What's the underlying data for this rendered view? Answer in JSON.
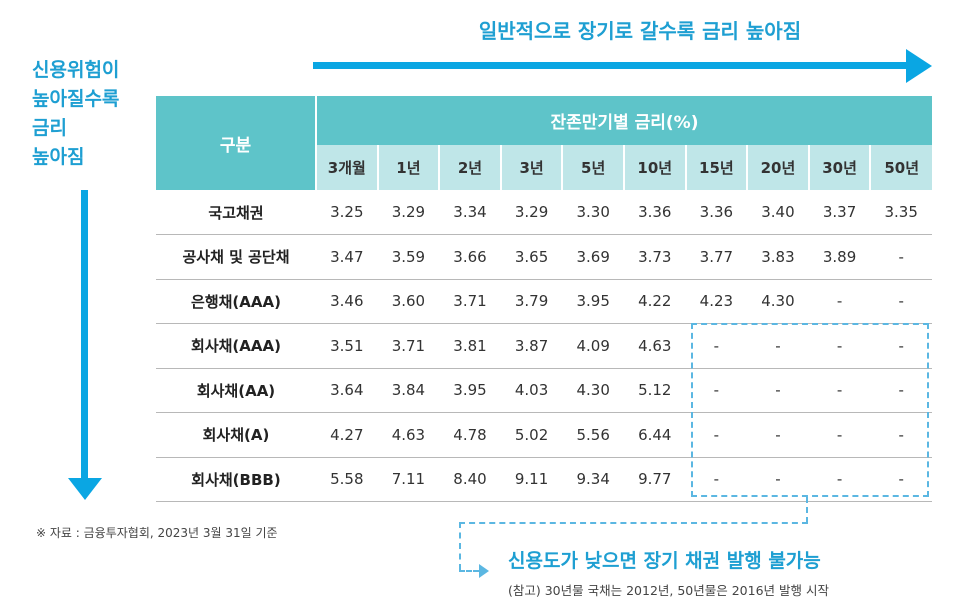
{
  "header_caption": "일반적으로 장기로 갈수록 금리 높아짐",
  "left_caption": [
    "신용위험이",
    "높아질수록",
    "금리",
    "높아짐"
  ],
  "table": {
    "corner_label": "구분",
    "group_label": "잔존만기별 금리(%)",
    "tenors": [
      "3개월",
      "1년",
      "2년",
      "3년",
      "5년",
      "10년",
      "15년",
      "20년",
      "30년",
      "50년"
    ],
    "rows": [
      {
        "label": "국고채권",
        "values": [
          "3.25",
          "3.29",
          "3.34",
          "3.29",
          "3.30",
          "3.36",
          "3.36",
          "3.40",
          "3.37",
          "3.35"
        ]
      },
      {
        "label": "공사채 및 공단채",
        "values": [
          "3.47",
          "3.59",
          "3.66",
          "3.65",
          "3.69",
          "3.73",
          "3.77",
          "3.83",
          "3.89",
          "-"
        ]
      },
      {
        "label": "은행채(AAA)",
        "values": [
          "3.46",
          "3.60",
          "3.71",
          "3.79",
          "3.95",
          "4.22",
          "4.23",
          "4.30",
          "-",
          "-"
        ]
      },
      {
        "label": "회사채(AAA)",
        "values": [
          "3.51",
          "3.71",
          "3.81",
          "3.87",
          "4.09",
          "4.63",
          "-",
          "-",
          "-",
          "-"
        ]
      },
      {
        "label": "회사채(AA)",
        "values": [
          "3.64",
          "3.84",
          "3.95",
          "4.03",
          "4.30",
          "5.12",
          "-",
          "-",
          "-",
          "-"
        ]
      },
      {
        "label": "회사채(A)",
        "values": [
          "4.27",
          "4.63",
          "4.78",
          "5.02",
          "5.56",
          "6.44",
          "-",
          "-",
          "-",
          "-"
        ]
      },
      {
        "label": "회사채(BBB)",
        "values": [
          "5.58",
          "7.11",
          "8.40",
          "9.11",
          "9.34",
          "9.77",
          "-",
          "-",
          "-",
          "-"
        ]
      }
    ]
  },
  "source_note": "※ 자료 : 금융투자협회, 2023년 3월 31일 기준",
  "callout": "신용도가 낮으면 장기 채권 발행 불가능",
  "ref_note": "(참고) 30년물 국채는 2012년, 50년물은 2016년 발행 시작",
  "colors": {
    "accent_blue": "#0aa6e3",
    "header_teal": "#5ec4c9",
    "subheader_teal": "#bfe6e8"
  }
}
